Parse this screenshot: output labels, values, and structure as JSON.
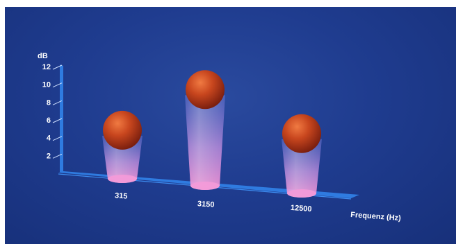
{
  "chart_data": {
    "type": "bar",
    "title": "",
    "xlabel": "Frequenz (Hz)",
    "ylabel": "dB",
    "categories": [
      "315",
      "3150",
      "12500"
    ],
    "values": [
      5.2,
      10.3,
      6.4
    ],
    "ylim": [
      0,
      12
    ],
    "yticks": [
      2,
      4,
      6,
      8,
      10,
      12
    ],
    "grid": false,
    "legend": "none"
  },
  "colors": {
    "background": "#1f3c8f",
    "axis": "#2f7be0",
    "sphere": "#c8461e",
    "tube": "#e08ad0",
    "text": "#ffffff"
  }
}
